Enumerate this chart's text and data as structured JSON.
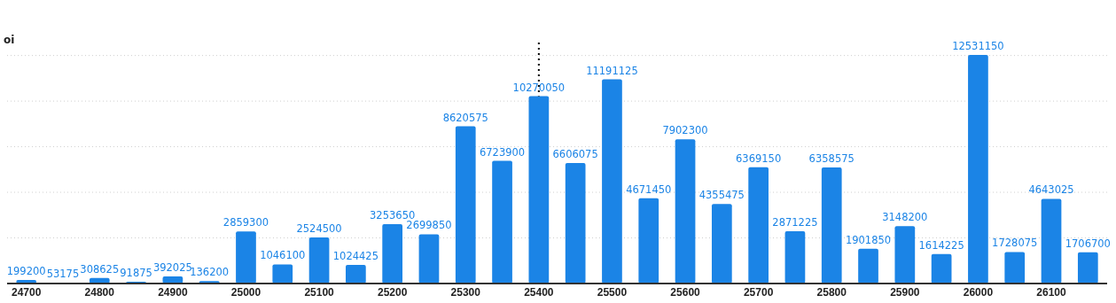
{
  "chart_data": {
    "type": "bar",
    "ylabel": "oi",
    "categories": [
      "24700",
      null,
      "24800",
      null,
      "24900",
      null,
      "25000",
      null,
      "25100",
      null,
      "25200",
      null,
      "25300",
      null,
      "25400",
      null,
      "25500",
      null,
      "25600",
      null,
      "25700",
      null,
      "25800",
      null,
      "25900",
      null,
      "26000",
      null,
      "26100",
      null
    ],
    "values": [
      199200,
      53175,
      308625,
      91875,
      392025,
      136200,
      2859300,
      1046100,
      2524500,
      1024425,
      3253650,
      2699850,
      8620575,
      6723900,
      10270050,
      6606075,
      11191125,
      4671450,
      7902300,
      4355475,
      6369150,
      2871225,
      6358575,
      1901850,
      3148200,
      1614225,
      12531150,
      1728075,
      4643025,
      1706700
    ],
    "color": "#1b84e6",
    "yticks": [
      {
        "value": 0,
        "label": null
      },
      {
        "value": 2500000,
        "label": null
      },
      {
        "value": 5000000,
        "label": null
      },
      {
        "value": 7500000,
        "label": null
      },
      {
        "value": 10000000,
        "label": null
      },
      {
        "value": 12500000,
        "label": null
      }
    ],
    "tick_labels": "x",
    "grid": "y",
    "data_labels": true,
    "ref_lines": [
      {
        "axis": "x",
        "value": "25400",
        "color": "#000000",
        "line_style": "dotted"
      }
    ]
  }
}
